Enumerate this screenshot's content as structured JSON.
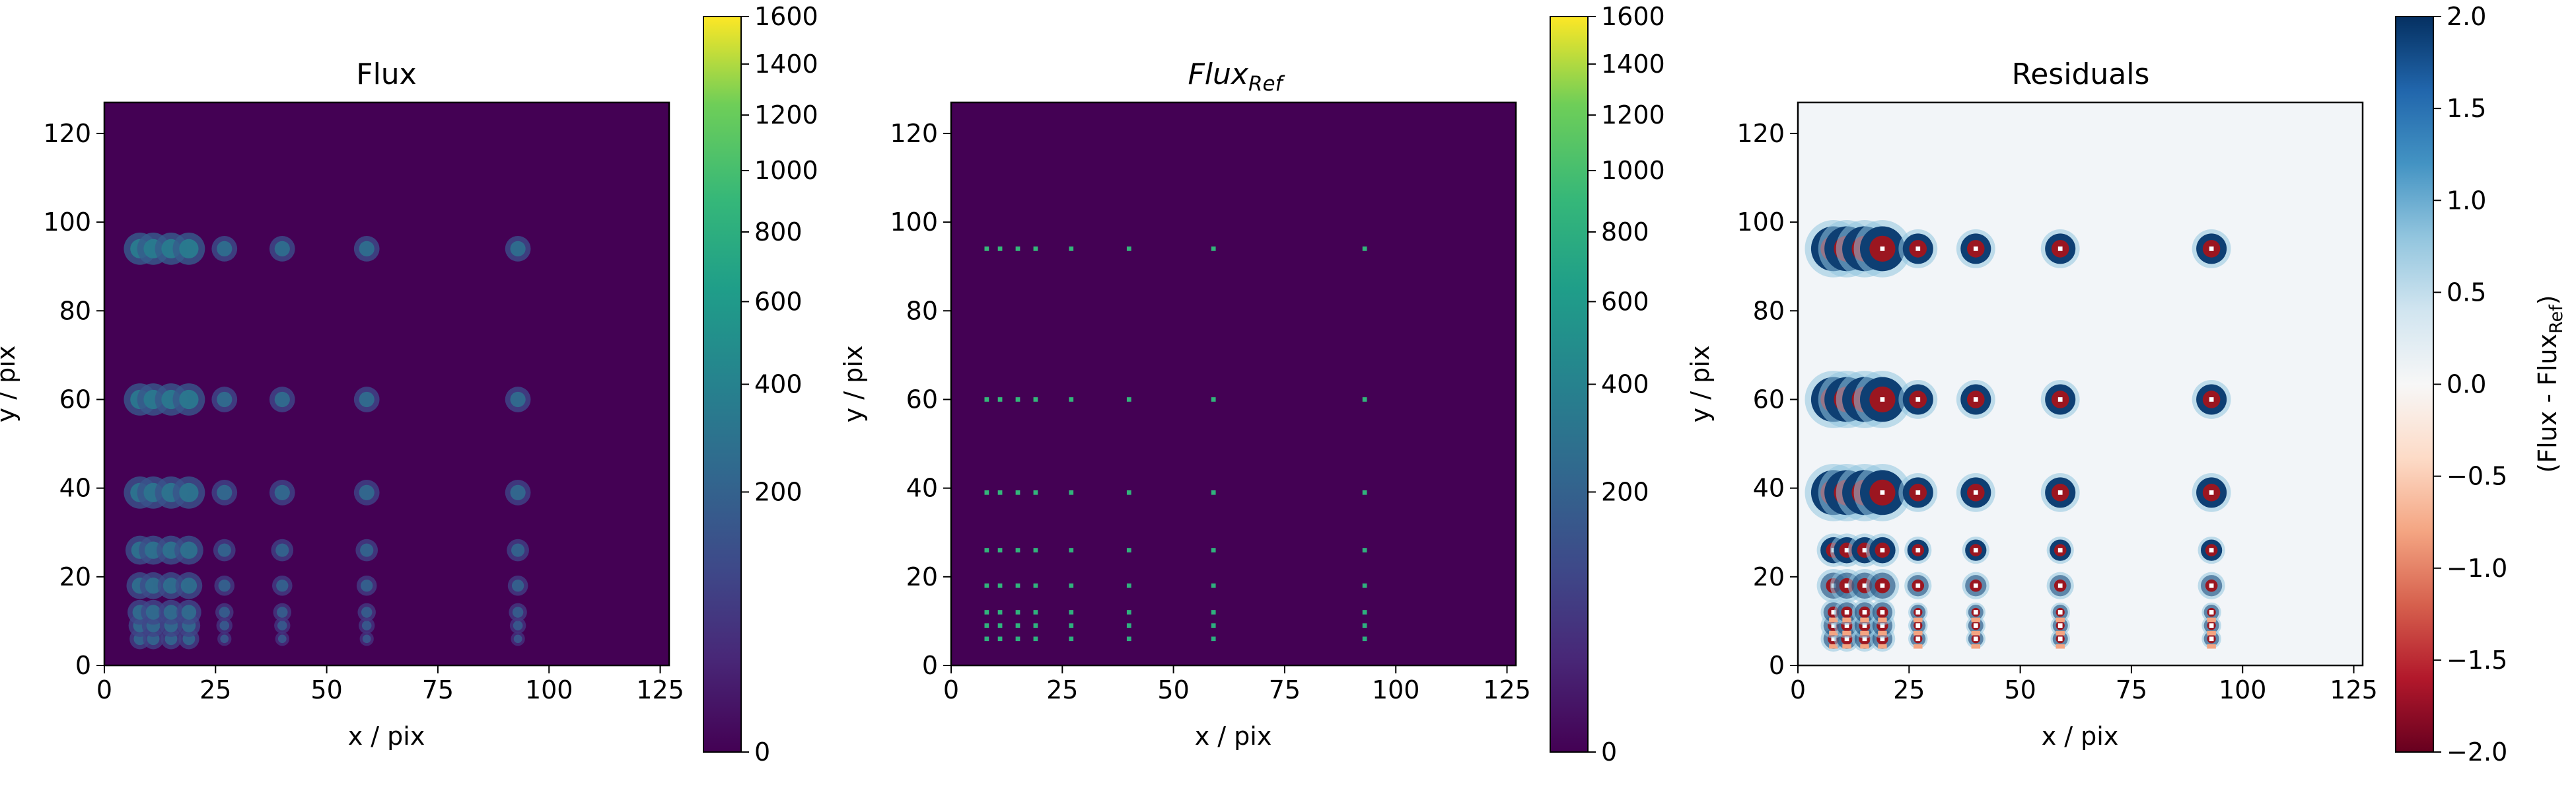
{
  "chart_data": [
    {
      "type": "heatmap",
      "title": "Flux",
      "xlabel": "x / pix",
      "ylabel": "y / pix",
      "xlim": [
        0,
        127
      ],
      "ylim": [
        0,
        127
      ],
      "xticks": [
        0,
        25,
        50,
        75,
        100,
        125
      ],
      "yticks": [
        0,
        20,
        40,
        60,
        80,
        100,
        120
      ],
      "colormap": "viridis",
      "colorbar": {
        "scale": "sqrt",
        "range": [
          0,
          1600
        ],
        "ticks": [
          0,
          200,
          400,
          600,
          800,
          1000,
          1200,
          1400,
          1600
        ],
        "label": ""
      },
      "sources": {
        "x": [
          8,
          11,
          15,
          19,
          27,
          40,
          59,
          93
        ],
        "y": [
          6,
          9,
          12,
          18,
          26,
          39,
          60,
          94
        ]
      },
      "background": 0
    },
    {
      "type": "heatmap",
      "title": "Flux",
      "title_sub": "Ref",
      "xlabel": "x / pix",
      "ylabel": "y / pix",
      "xlim": [
        0,
        127
      ],
      "ylim": [
        0,
        127
      ],
      "xticks": [
        0,
        25,
        50,
        75,
        100,
        125
      ],
      "yticks": [
        0,
        20,
        40,
        60,
        80,
        100,
        120
      ],
      "colormap": "viridis",
      "colorbar": {
        "scale": "sqrt",
        "range": [
          0,
          1600
        ],
        "ticks": [
          0,
          200,
          400,
          600,
          800,
          1000,
          1200,
          1400,
          1600
        ],
        "label": ""
      },
      "sources": {
        "x": [
          8,
          11,
          15,
          19,
          27,
          40,
          59,
          93
        ],
        "y": [
          6,
          9,
          12,
          18,
          26,
          39,
          60,
          94
        ]
      },
      "background": 0
    },
    {
      "type": "heatmap",
      "title": "Residuals",
      "xlabel": "x / pix",
      "ylabel": "y / pix",
      "xlim": [
        0,
        127
      ],
      "ylim": [
        0,
        127
      ],
      "xticks": [
        0,
        25,
        50,
        75,
        100,
        125
      ],
      "yticks": [
        0,
        20,
        40,
        60,
        80,
        100,
        120
      ],
      "colormap": "RdBu",
      "colorbar": {
        "scale": "linear",
        "range": [
          -2.0,
          2.0
        ],
        "ticks": [
          2.0,
          1.5,
          1.0,
          0.5,
          0.0,
          -0.5,
          -1.0,
          -1.5,
          -2.0
        ],
        "tick_labels": [
          "2.0",
          "1.5",
          "1.0",
          "0.5",
          "0.0",
          "−0.5",
          "−1.0",
          "−1.5",
          "−2.0"
        ],
        "label": "(Flux - Flux",
        "label_sub": "Ref",
        "label_end": ")"
      },
      "sources": {
        "x": [
          8,
          11,
          15,
          19,
          27,
          40,
          59,
          93
        ],
        "y": [
          6,
          9,
          12,
          18,
          26,
          39,
          60,
          94
        ]
      }
    }
  ]
}
